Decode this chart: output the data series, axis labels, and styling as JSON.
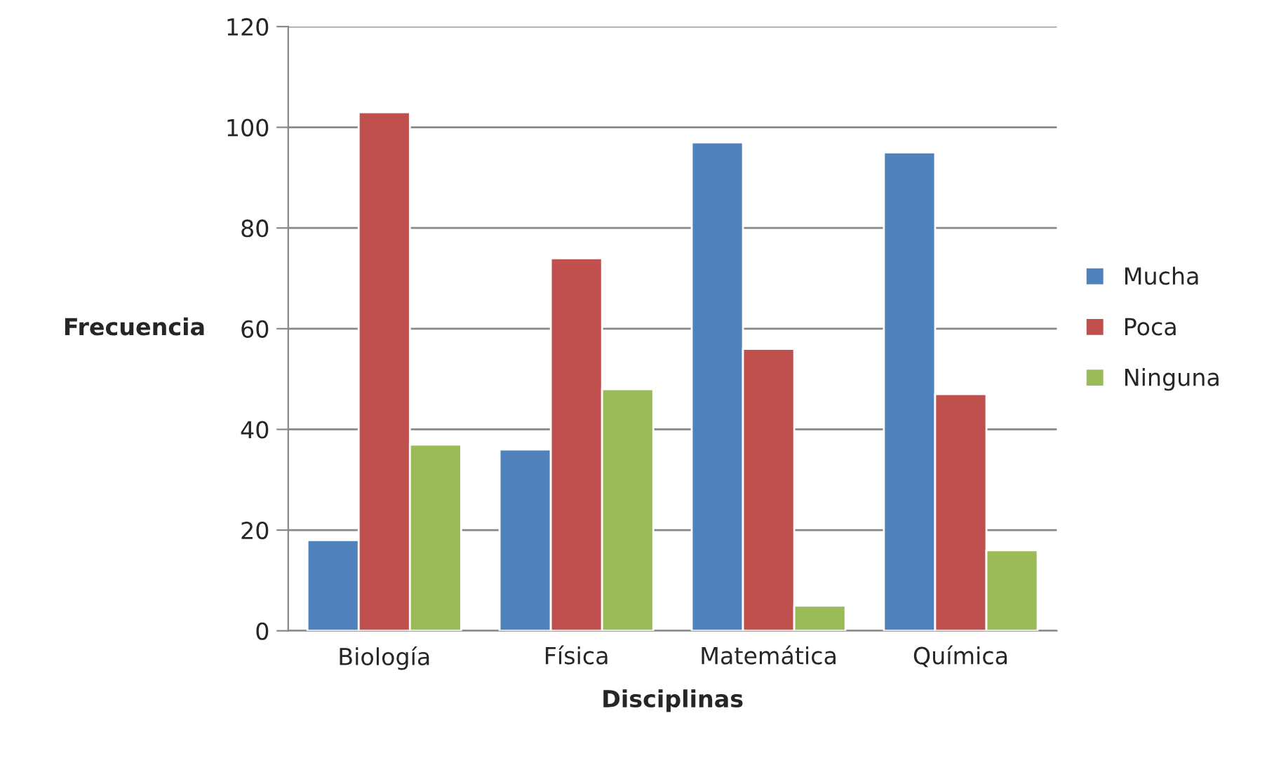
{
  "chart_data": {
    "type": "bar",
    "xlabel": "Disciplinas",
    "ylabel": "Frecuencia",
    "categories": [
      "Biología",
      "Física",
      "Matemática",
      "Química"
    ],
    "series": [
      {
        "name": "Mucha",
        "color": "#4f81bd",
        "values": [
          18,
          36,
          97,
          95
        ]
      },
      {
        "name": "Poca",
        "color": "#c0504d",
        "values": [
          103,
          74,
          56,
          47
        ]
      },
      {
        "name": "Ninguna",
        "color": "#9bbb59",
        "values": [
          37,
          48,
          5,
          16
        ]
      }
    ],
    "ylim": [
      0,
      120
    ],
    "yticks": [
      0,
      20,
      40,
      60,
      80,
      100,
      120
    ],
    "grid": "y",
    "legend": "right"
  }
}
